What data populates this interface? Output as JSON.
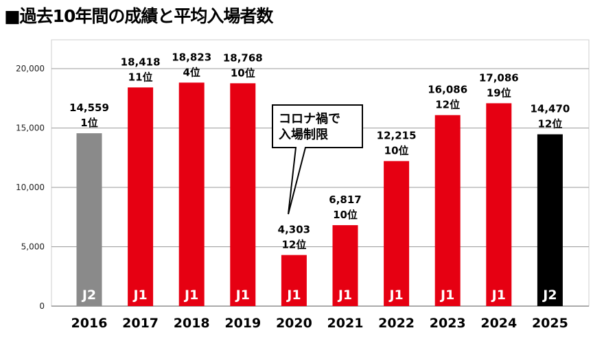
{
  "title": "■過去10年間の成績と平均入場者数",
  "chart_data": {
    "type": "bar",
    "title": "過去10年間の成績と平均入場者数",
    "xlabel": "",
    "ylabel": "",
    "ylim": [
      0,
      22000
    ],
    "yticks": [
      0,
      5000,
      10000,
      15000,
      20000
    ],
    "ytick_labels": [
      "0",
      "5,000",
      "10,000",
      "15,000",
      "20,000"
    ],
    "grid": true,
    "categories": [
      "2016",
      "2017",
      "2018",
      "2019",
      "2020",
      "2021",
      "2022",
      "2023",
      "2024",
      "2025"
    ],
    "values": [
      14559,
      18418,
      18823,
      18768,
      4303,
      6817,
      12215,
      16086,
      17086,
      14470
    ],
    "value_labels": [
      "14,559",
      "18,418",
      "18,823",
      "18,768",
      "4,303",
      "6,817",
      "12,215",
      "16,086",
      "17,086",
      "14,470"
    ],
    "ranks": [
      "1位",
      "11位",
      "4位",
      "10位",
      "12位",
      "10位",
      "10位",
      "12位",
      "19位",
      "12位"
    ],
    "leagues": [
      "J2",
      "J1",
      "J1",
      "J1",
      "J1",
      "J1",
      "J1",
      "J1",
      "J1",
      "J2"
    ],
    "colors": [
      "#8a8a8a",
      "#e60012",
      "#e60012",
      "#e60012",
      "#e60012",
      "#e60012",
      "#e60012",
      "#e60012",
      "#e60012",
      "#000000"
    ],
    "annotation": {
      "lines": [
        "コロナ禍で",
        "入場制限"
      ],
      "category": "2020"
    }
  }
}
